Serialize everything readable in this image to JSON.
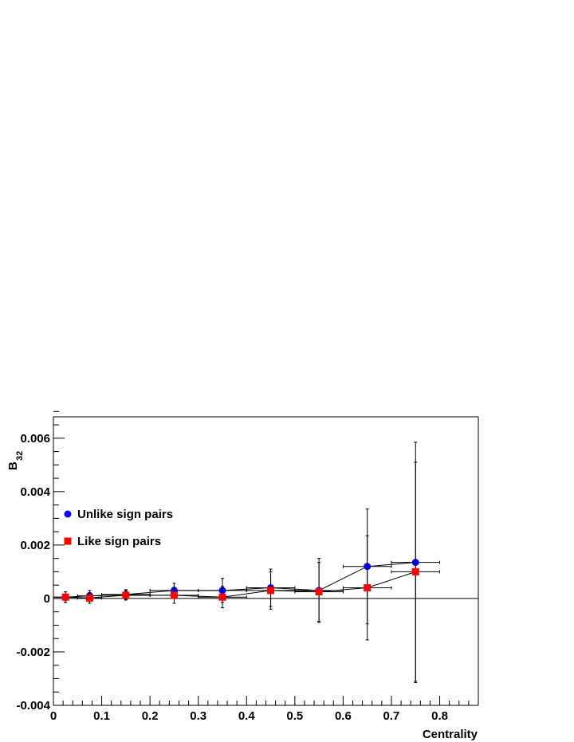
{
  "chart_data": {
    "type": "scatter",
    "xlabel": "Centrality",
    "ylabel": "B",
    "ylabel_sub": "32",
    "xlim": [
      0,
      0.88
    ],
    "ylim": [
      -0.004,
      0.0068
    ],
    "x_ticks": [
      0,
      0.1,
      0.2,
      0.3,
      0.4,
      0.5,
      0.6,
      0.7,
      0.8
    ],
    "x_tick_labels": [
      "0",
      "0.1",
      "0.2",
      "0.3",
      "0.4",
      "0.5",
      "0.6",
      "0.7",
      "0.8"
    ],
    "y_ticks": [
      -0.004,
      -0.002,
      0,
      0.002,
      0.004,
      0.006
    ],
    "y_tick_labels": [
      "-0.004",
      "-0.002",
      "0",
      "0.002",
      "0.004",
      "0.006"
    ],
    "zero_line": true,
    "legend_position": "left",
    "series": [
      {
        "name": "Unlike sign pairs",
        "color": "#0000ff",
        "marker": "circle",
        "x": [
          0.025,
          0.075,
          0.15,
          0.25,
          0.35,
          0.45,
          0.55,
          0.65,
          0.75
        ],
        "xerr": [
          0.025,
          0.025,
          0.05,
          0.05,
          0.05,
          0.05,
          0.05,
          0.05,
          0.05
        ],
        "y": [
          5e-05,
          0.0001,
          0.00015,
          0.0003,
          0.0003,
          0.0004,
          0.0003,
          0.0012,
          0.00135
        ],
        "yerr": [
          0.0002,
          0.0002,
          0.00018,
          0.00027,
          0.00045,
          0.0007,
          0.0012,
          0.00215,
          0.0045
        ]
      },
      {
        "name": "Like sign pairs",
        "color": "#ff0000",
        "marker": "square",
        "x": [
          0.025,
          0.075,
          0.15,
          0.25,
          0.35,
          0.45,
          0.55,
          0.65,
          0.75
        ],
        "xerr": [
          0.025,
          0.025,
          0.05,
          0.05,
          0.05,
          0.05,
          0.05,
          0.05,
          0.05
        ],
        "y": [
          5e-05,
          2e-05,
          0.00012,
          0.00012,
          5e-05,
          0.0003,
          0.00025,
          0.0004,
          0.001
        ],
        "yerr": [
          0.0002,
          0.0002,
          0.00018,
          0.0003,
          0.0004,
          0.0007,
          0.0011,
          0.00195,
          0.0041
        ]
      }
    ]
  }
}
